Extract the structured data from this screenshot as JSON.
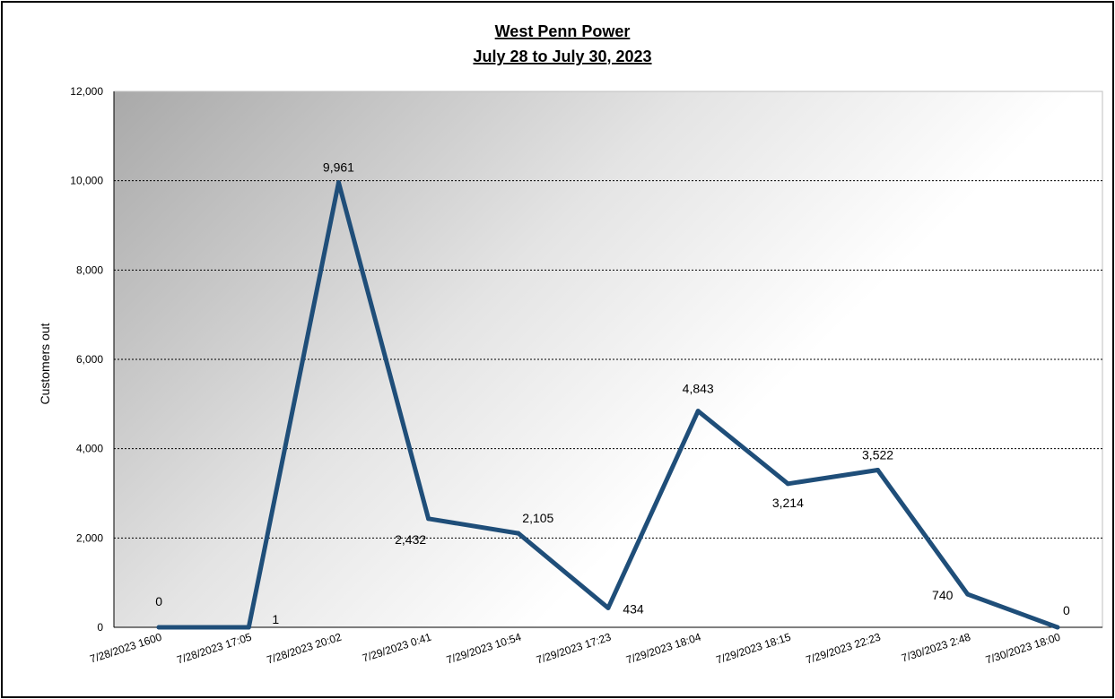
{
  "chart_data": {
    "type": "line",
    "title": "West Penn Power",
    "subtitle": "July 28 to July 30, 2023",
    "xlabel": "",
    "ylabel": "Customers out",
    "ylim": [
      0,
      12000
    ],
    "ytick_step": 2000,
    "ytick_labels": [
      "0",
      "2,000",
      "4,000",
      "6,000",
      "8,000",
      "10,000",
      "12,000"
    ],
    "grid": "horizontal dashed",
    "legend": "none",
    "categories": [
      "7/28/2023 1600",
      "7/28/2023 17:05",
      "7/28/2023 20:02",
      "7/29/2023 0:41",
      "7/29/2023 10:54",
      "7/29/2023 17:23",
      "7/29/2023 18:04",
      "7/29/2023 18:15",
      "7/29/2023 22:23",
      "7/30/2023 2:48",
      "7/30/2023 18:00"
    ],
    "values": [
      0,
      1,
      9961,
      2432,
      2105,
      434,
      4843,
      3214,
      3522,
      740,
      0
    ],
    "value_labels": [
      "0",
      "1",
      "9,961",
      "2,432",
      "2,105",
      "434",
      "4,843",
      "3,214",
      "3,522",
      "740",
      "0"
    ],
    "line_color": "#1f4e79"
  }
}
